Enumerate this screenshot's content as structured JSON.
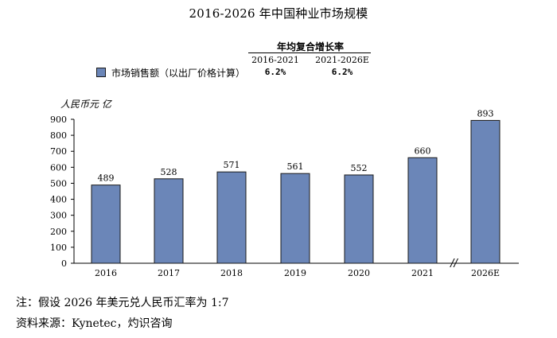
{
  "chart_data": {
    "type": "bar",
    "title": "2016-2026 年中国种业市场规模",
    "ylabel": "人民币元 亿",
    "xlabel": "",
    "categories": [
      "2016",
      "2017",
      "2018",
      "2019",
      "2020",
      "2021",
      "2026E"
    ],
    "series": [
      {
        "name": "市场销售额（以出厂价格计算）",
        "values": [
          489,
          528,
          571,
          561,
          552,
          660,
          893
        ]
      }
    ],
    "ylim": [
      0,
      900
    ],
    "yticks": [
      "0",
      "100",
      "200",
      "300",
      "400",
      "500",
      "600",
      "700",
      "800",
      "900"
    ],
    "bar_color": "#6b86b8",
    "axis_break_marker": "//",
    "cagr_table": {
      "header": "年均复合增长率",
      "periods": [
        "2016-2021",
        "2021-2026E"
      ],
      "values": [
        "6.2%",
        "6.2%"
      ]
    }
  },
  "notes": {
    "note": "注：假设 2026 年美元兑人民币汇率为 1:7",
    "source": "资料来源：Kynetec，灼识咨询"
  }
}
